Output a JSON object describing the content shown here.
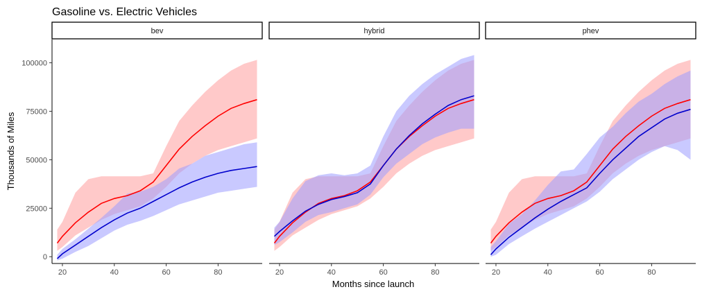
{
  "chart_data": {
    "type": "area",
    "title": "Gasoline vs. Electric Vehicles",
    "xlabel": "Months since launch",
    "ylabel": "Thousands of Miles",
    "xlim": [
      16,
      97
    ],
    "ylim": [
      -3500,
      112000
    ],
    "x_ticks": [
      20,
      40,
      60,
      80
    ],
    "y_ticks": [
      0,
      25000,
      50000,
      75000,
      100000
    ],
    "y_tick_labels": [
      "0",
      "25000",
      "50000",
      "75000",
      "100000"
    ],
    "grid": false,
    "colors": {
      "gasoline": "#ff0000",
      "electric": "#0000cc",
      "gasoline_band": "#ff9d9d",
      "electric_band": "#9d9dff"
    },
    "series_names": [
      "Gasoline",
      "Electric"
    ],
    "x": [
      18,
      20,
      25,
      30,
      35,
      40,
      45,
      50,
      55,
      60,
      65,
      70,
      75,
      80,
      85,
      90,
      95
    ],
    "gasoline": {
      "mean": [
        7000,
        10500,
        17500,
        23000,
        27500,
        30000,
        31500,
        34000,
        38500,
        47000,
        55500,
        62000,
        67500,
        72500,
        76500,
        79000,
        81000
      ],
      "lower": [
        3000,
        5000,
        11000,
        15000,
        19000,
        22000,
        24000,
        26000,
        30000,
        36000,
        43000,
        48000,
        52000,
        55000,
        57000,
        59000,
        61000
      ],
      "upper": [
        14000,
        18000,
        33000,
        40000,
        41500,
        41500,
        41500,
        41500,
        43000,
        57000,
        70000,
        78000,
        85000,
        91000,
        96000,
        99500,
        101500
      ]
    },
    "facets": [
      {
        "name": "bev",
        "electric": {
          "mean": [
            -1000,
            1500,
            6000,
            10500,
            15000,
            19000,
            22500,
            25000,
            28500,
            32000,
            35500,
            38500,
            41000,
            43000,
            44500,
            45500,
            46500
          ],
          "lower": [
            -2000,
            -1000,
            2500,
            5500,
            9500,
            13500,
            16500,
            18500,
            21000,
            24000,
            27000,
            29000,
            31000,
            33000,
            34000,
            35000,
            36000
          ],
          "upper": [
            1000,
            4000,
            9000,
            14500,
            20000,
            26000,
            32500,
            33500,
            36000,
            40000,
            45500,
            48000,
            52000,
            54000,
            56000,
            58000,
            59000
          ]
        }
      },
      {
        "name": "hybrid",
        "electric": {
          "mean": [
            10500,
            13000,
            18500,
            23500,
            27000,
            29500,
            31000,
            33000,
            37500,
            47000,
            55500,
            62500,
            68500,
            73500,
            78000,
            81000,
            83000
          ],
          "lower": [
            6000,
            7500,
            12500,
            18000,
            21500,
            23000,
            25000,
            27000,
            32000,
            41000,
            48000,
            53000,
            58000,
            61500,
            64000,
            66000,
            66000
          ],
          "upper": [
            15000,
            18000,
            30000,
            39000,
            42000,
            43000,
            42000,
            43000,
            47000,
            62000,
            75000,
            83000,
            89000,
            94000,
            98000,
            102000,
            104000
          ]
        }
      },
      {
        "name": "phev",
        "electric": {
          "mean": [
            1000,
            4000,
            10000,
            15000,
            20000,
            24500,
            28500,
            32000,
            35500,
            43000,
            50000,
            56000,
            62000,
            66500,
            71000,
            74000,
            76000
          ],
          "lower": [
            0,
            1000,
            6500,
            10500,
            14500,
            18000,
            21500,
            25000,
            28500,
            33500,
            40000,
            45000,
            50000,
            54000,
            57000,
            55000,
            50000
          ],
          "upper": [
            5000,
            8000,
            17000,
            22000,
            29000,
            37000,
            44000,
            45000,
            53000,
            61500,
            67000,
            74000,
            80000,
            84000,
            89000,
            93000,
            96000
          ]
        }
      }
    ]
  }
}
